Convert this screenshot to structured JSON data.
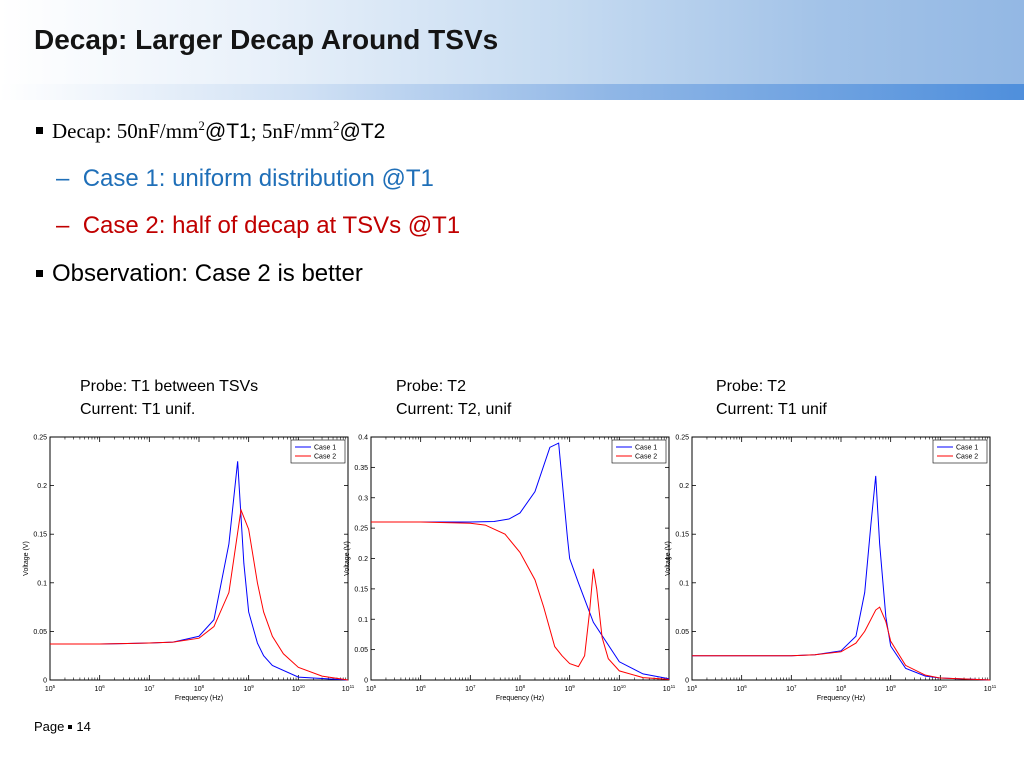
{
  "slide": {
    "title": "Decap: Larger Decap Around TSVs",
    "bullet1": {
      "a": "Decap: 50nF/mm",
      "a_sup": "2",
      "b": "@T1",
      "c": "; 5nF/mm",
      "c_sup": "2",
      "d": "@T2"
    },
    "sub1": {
      "dash": "–",
      "text": "Case 1: uniform distribution @T1"
    },
    "sub2": {
      "dash": "–",
      "text": "Case 2: half of decap at TSVs @T1"
    },
    "bullet2": "Observation: Case 2 is better",
    "footer": {
      "page_label": "Page",
      "page_number": "14"
    }
  },
  "colors": {
    "case1": "#0000ff",
    "case2": "#ff0000",
    "sub1_text": "#1f6fb8",
    "sub2_text": "#c00000"
  },
  "plot_labels": [
    {
      "line1": "Probe: T1 between TSVs",
      "line2": "Current: T1 unif."
    },
    {
      "line1": "Probe: T2",
      "line2": "Current: T2, unif"
    },
    {
      "line1": "Probe: T2",
      "line2": "Current: T1 unif"
    }
  ],
  "chart_data": [
    {
      "type": "line",
      "xlabel": "Frequency (Hz)",
      "ylabel": "Voltage (V)",
      "xscale": "log",
      "xlim": [
        100000.0,
        100000000000.0
      ],
      "ylim": [
        0,
        0.25
      ],
      "yticks": [
        0,
        0.05,
        0.1,
        0.15,
        0.2,
        0.25
      ],
      "legend": "top-right",
      "series": [
        {
          "name": "Case 1",
          "x": [
            100000.0,
            1000000.0,
            10000000.0,
            30000000.0,
            100000000.0,
            200000000.0,
            400000000.0,
            600000000.0,
            800000000.0,
            1000000000.0,
            1500000000.0,
            2000000000.0,
            3000000000.0,
            10000000000.0,
            100000000000.0
          ],
          "y": [
            0.037,
            0.037,
            0.038,
            0.039,
            0.045,
            0.062,
            0.14,
            0.225,
            0.12,
            0.07,
            0.038,
            0.025,
            0.015,
            0.003,
            0.0
          ]
        },
        {
          "name": "Case 2",
          "x": [
            100000.0,
            1000000.0,
            10000000.0,
            30000000.0,
            100000000.0,
            200000000.0,
            400000000.0,
            700000000.0,
            1000000000.0,
            1500000000.0,
            2000000000.0,
            3000000000.0,
            5000000000.0,
            10000000000.0,
            30000000000.0,
            100000000000.0
          ],
          "y": [
            0.037,
            0.037,
            0.038,
            0.039,
            0.043,
            0.055,
            0.09,
            0.175,
            0.155,
            0.1,
            0.07,
            0.045,
            0.027,
            0.013,
            0.004,
            0.0
          ]
        }
      ]
    },
    {
      "type": "line",
      "xlabel": "Frequency (Hz)",
      "ylabel": "Voltage (V)",
      "xscale": "log",
      "xlim": [
        100000.0,
        100000000000.0
      ],
      "ylim": [
        0,
        0.4
      ],
      "yticks": [
        0,
        0.05,
        0.1,
        0.15,
        0.2,
        0.25,
        0.3,
        0.35,
        0.4
      ],
      "legend": "top-right",
      "series": [
        {
          "name": "Case 1",
          "x": [
            100000.0,
            1000000.0,
            10000000.0,
            30000000.0,
            60000000.0,
            100000000.0,
            200000000.0,
            400000000.0,
            600000000.0,
            800000000.0,
            900000000.0,
            1000000000.0,
            1500000000.0,
            3000000000.0,
            10000000000.0,
            30000000000.0,
            100000000000.0
          ],
          "y": [
            0.26,
            0.26,
            0.26,
            0.261,
            0.265,
            0.275,
            0.31,
            0.383,
            0.39,
            0.28,
            0.235,
            0.2,
            0.16,
            0.095,
            0.03,
            0.01,
            0.002
          ]
        },
        {
          "name": "Case 2",
          "x": [
            100000.0,
            1000000.0,
            10000000.0,
            20000000.0,
            50000000.0,
            100000000.0,
            200000000.0,
            300000000.0,
            500000000.0,
            700000000.0,
            1000000000.0,
            1500000000.0,
            2000000000.0,
            2500000000.0,
            3000000000.0,
            3500000000.0,
            4500000000.0,
            6000000000.0,
            10000000000.0,
            30000000000.0,
            100000000000.0
          ],
          "y": [
            0.26,
            0.26,
            0.258,
            0.255,
            0.24,
            0.21,
            0.165,
            0.12,
            0.055,
            0.04,
            0.027,
            0.022,
            0.04,
            0.11,
            0.183,
            0.15,
            0.07,
            0.035,
            0.015,
            0.004,
            0.001
          ]
        }
      ]
    },
    {
      "type": "line",
      "xlabel": "Frequency (Hz)",
      "ylabel": "Voltage (V)",
      "xscale": "log",
      "xlim": [
        100000.0,
        100000000000.0
      ],
      "ylim": [
        0,
        0.25
      ],
      "yticks": [
        0,
        0.05,
        0.1,
        0.15,
        0.2,
        0.25
      ],
      "legend": "top-right",
      "series": [
        {
          "name": "Case 1",
          "x": [
            100000.0,
            1000000.0,
            10000000.0,
            30000000.0,
            100000000.0,
            200000000.0,
            300000000.0,
            400000000.0,
            500000000.0,
            600000000.0,
            800000000.0,
            1000000000.0,
            2000000000.0,
            5000000000.0,
            10000000000.0,
            100000000000.0
          ],
          "y": [
            0.025,
            0.025,
            0.025,
            0.026,
            0.03,
            0.045,
            0.09,
            0.16,
            0.21,
            0.14,
            0.065,
            0.035,
            0.012,
            0.004,
            0.002,
            0.0
          ]
        },
        {
          "name": "Case 2",
          "x": [
            100000.0,
            1000000.0,
            10000000.0,
            30000000.0,
            100000000.0,
            200000000.0,
            300000000.0,
            500000000.0,
            600000000.0,
            800000000.0,
            1000000000.0,
            2000000000.0,
            5000000000.0,
            10000000000.0,
            100000000000.0
          ],
          "y": [
            0.025,
            0.025,
            0.025,
            0.026,
            0.029,
            0.038,
            0.05,
            0.072,
            0.075,
            0.06,
            0.04,
            0.015,
            0.005,
            0.002,
            0.0
          ]
        }
      ]
    }
  ]
}
